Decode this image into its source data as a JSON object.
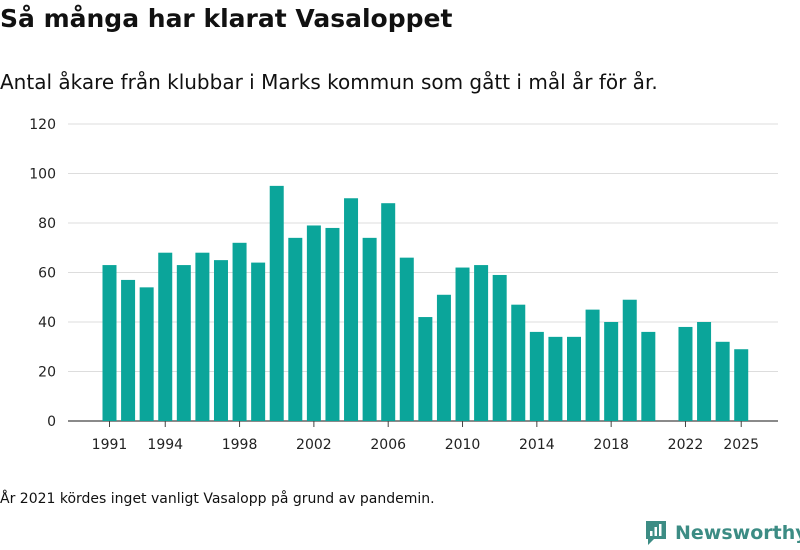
{
  "title": "Så många har klarat Vasaloppet",
  "subtitle": "Antal åkare från klubbar i Marks kommun som gått i mål år för år.",
  "note": "År 2021 kördes inget vanligt Vasalopp på grund av pandemin.",
  "brand": {
    "name": "Newsworthy",
    "icon": "newsworthy-logo-icon",
    "color": "#3c8c84"
  },
  "chart_data": {
    "type": "bar",
    "bar_color": "#0ba59a",
    "grid": true,
    "ylim": [
      0,
      120
    ],
    "yticks": [
      0,
      20,
      40,
      60,
      80,
      100,
      120
    ],
    "xticks": [
      1991,
      1994,
      1998,
      2002,
      2006,
      2010,
      2014,
      2018,
      2022,
      2025
    ],
    "x": [
      1991,
      1992,
      1993,
      1994,
      1995,
      1996,
      1997,
      1998,
      1999,
      2000,
      2001,
      2002,
      2003,
      2004,
      2005,
      2006,
      2007,
      2008,
      2009,
      2010,
      2011,
      2012,
      2013,
      2014,
      2015,
      2016,
      2017,
      2018,
      2019,
      2020,
      2021,
      2022,
      2023,
      2024,
      2025
    ],
    "values": [
      63,
      57,
      54,
      68,
      63,
      68,
      65,
      72,
      64,
      95,
      74,
      79,
      78,
      90,
      74,
      88,
      66,
      42,
      51,
      62,
      63,
      59,
      47,
      36,
      34,
      34,
      45,
      40,
      49,
      36,
      null,
      38,
      40,
      32,
      29
    ]
  }
}
